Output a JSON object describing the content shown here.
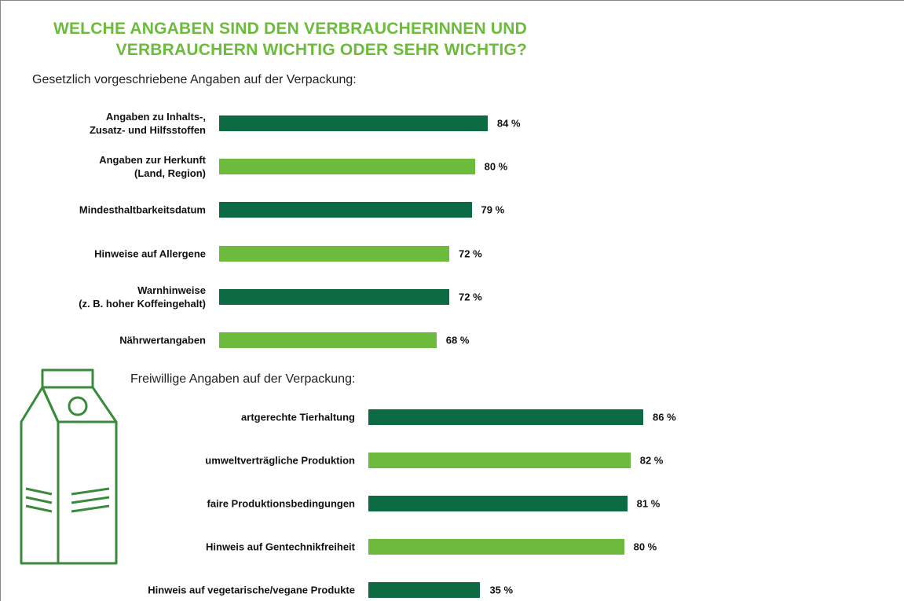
{
  "title": "WELCHE ANGABEN SIND DEN VERBRAUCHERINNEN UND\nVERBRAUCHERN WICHTIG ODER SEHR WICHTIG?",
  "chart_data": [
    {
      "type": "bar",
      "orientation": "horizontal",
      "subtitle": "Gesetzlich vorgeschriebene Angaben auf der Verpackung:",
      "categories": [
        "Angaben zu Inhalts-,\nZusatz- und Hilfsstoffen",
        "Angaben zur Herkunft\n(Land, Region)",
        "Mindesthaltbarkeitsdatum",
        "Hinweise auf Allergene",
        "Warnhinweise\n(z. B. hoher Koffeingehalt)",
        "Nährwertangaben"
      ],
      "values": [
        84,
        80,
        79,
        72,
        72,
        68
      ],
      "value_labels": [
        "84 %",
        "80 %",
        "79 %",
        "72 %",
        "72 %",
        "68 %"
      ],
      "colors": [
        "#0d6b43",
        "#6cbb3c",
        "#0d6b43",
        "#6cbb3c",
        "#0d6b43",
        "#6cbb3c"
      ]
    },
    {
      "type": "bar",
      "orientation": "horizontal",
      "subtitle": "Freiwillige Angaben auf der Verpackung:",
      "categories": [
        "artgerechte Tierhaltung",
        "umweltverträgliche Produktion",
        "faire Produktionsbedingungen",
        "Hinweis auf Gentechnikfreiheit",
        "Hinweis auf vegetarische/vegane Produkte"
      ],
      "values": [
        86,
        82,
        81,
        80,
        35
      ],
      "value_labels": [
        "86 %",
        "82 %",
        "81 %",
        "80 %",
        "35 %"
      ],
      "colors": [
        "#0d6b43",
        "#6cbb3c",
        "#0d6b43",
        "#6cbb3c",
        "#0d6b43"
      ]
    }
  ]
}
